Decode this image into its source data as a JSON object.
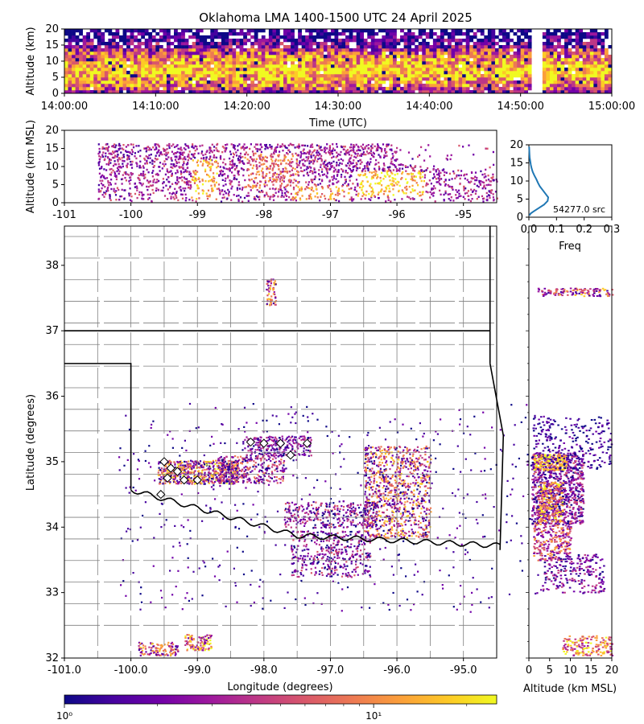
{
  "title": "Oklahoma LMA 1400-1500 UTC 24 April 2025",
  "colors": {
    "colormap": [
      "#0d0887",
      "#46039f",
      "#7201a8",
      "#9c179e",
      "#bd3786",
      "#d8576b",
      "#ed7953",
      "#fb9f3a",
      "#fdca26",
      "#f0f921"
    ],
    "border": "#000000",
    "county": "#7f7f7f",
    "histogram_line": "#1f77b4",
    "station_marker": "#ffffff"
  },
  "chart_data": [
    {
      "id": "time_height",
      "type": "heatmap",
      "title": "",
      "xlabel": "Time (UTC)",
      "ylabel": "Altitude (km)",
      "xlim": [
        "14:00:00",
        "15:00:00"
      ],
      "ylim": [
        0,
        20
      ],
      "x_ticks": [
        "14:00:00",
        "14:10:00",
        "14:20:00",
        "14:30:00",
        "14:40:00",
        "14:50:00",
        "15:00:00"
      ],
      "y_ticks": [
        0,
        5,
        10,
        15,
        20
      ],
      "grid": false
    },
    {
      "id": "lon_alt",
      "type": "heatmap",
      "xlabel": "",
      "ylabel": "Altitude (km MSL)",
      "xlim": [
        -101,
        -94.5
      ],
      "ylim": [
        0,
        20
      ],
      "x_ticks": [
        -101,
        -100,
        -99,
        -98,
        -97,
        -96,
        -95
      ],
      "y_ticks": [
        0,
        5,
        10,
        15,
        20
      ],
      "grid": false
    },
    {
      "id": "alt_histogram",
      "type": "line",
      "xlabel": "Freq",
      "ylabel": "",
      "xlim": [
        0,
        0.3
      ],
      "ylim": [
        0,
        20
      ],
      "x_ticks": [
        "0.0",
        "0.1",
        "0.2",
        "0.3"
      ],
      "y_ticks": [
        0,
        5,
        10,
        15,
        20
      ],
      "annotation": "54277.0 src",
      "series": [
        {
          "x": [
            0.002,
            0.006,
            0.015,
            0.035,
            0.055,
            0.068,
            0.07,
            0.06,
            0.05,
            0.04,
            0.033,
            0.027,
            0.02,
            0.014,
            0.01,
            0.007,
            0.005,
            0.003,
            0.002,
            0.001
          ],
          "y": [
            0.5,
            1,
            1.5,
            2.5,
            3.5,
            4.5,
            5.5,
            6.5,
            7.5,
            8.5,
            9.5,
            10.5,
            11.5,
            12.5,
            13.5,
            14.5,
            15.5,
            16.5,
            17.5,
            19.5
          ]
        }
      ]
    },
    {
      "id": "plan_view",
      "type": "heatmap",
      "xlabel": "Longitude (degrees)",
      "ylabel": "Latitude (degrees)",
      "xlim": [
        -101,
        -94.5
      ],
      "ylim": [
        32,
        38.6
      ],
      "x_ticks": [
        "-101.0",
        "-100.0",
        "-99.0",
        "-98.0",
        "-97.0",
        "-96.0",
        "-95.0"
      ],
      "y_ticks": [
        32,
        33,
        34,
        35,
        36,
        37,
        38
      ],
      "stations": [
        [
          -99.5,
          35.0
        ],
        [
          -99.4,
          34.9
        ],
        [
          -99.3,
          34.85
        ],
        [
          -99.45,
          34.75
        ],
        [
          -99.2,
          34.72
        ],
        [
          -99.0,
          34.72
        ],
        [
          -99.55,
          34.5
        ],
        [
          -98.2,
          35.3
        ],
        [
          -98.0,
          35.28
        ],
        [
          -97.75,
          35.28
        ],
        [
          -97.35,
          35.28
        ],
        [
          -97.6,
          35.1
        ]
      ],
      "grid": false
    },
    {
      "id": "lat_alt",
      "type": "heatmap",
      "xlabel": "Altitude (km MSL)",
      "ylabel": "",
      "xlim": [
        0,
        20
      ],
      "ylim": [
        32,
        38.6
      ],
      "x_ticks": [
        0,
        5,
        10,
        15,
        20
      ],
      "grid": false
    },
    {
      "id": "colorbar",
      "type": "heatmap",
      "scale": "log",
      "range": [
        1,
        25
      ],
      "tick_labels": [
        {
          "value": 1,
          "label": "10⁰"
        },
        {
          "value": 10,
          "label": "10¹"
        }
      ],
      "minor_ticks": [
        2,
        3,
        4,
        5,
        6,
        7,
        8,
        9,
        20
      ]
    }
  ]
}
